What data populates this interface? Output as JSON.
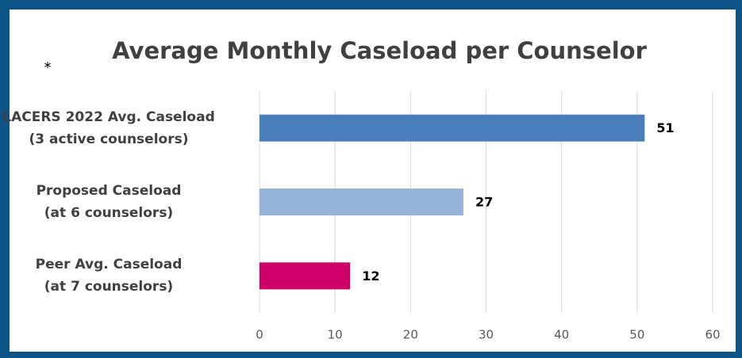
{
  "chart_data": {
    "type": "hbar",
    "title": "Average Monthly Caseload per Counselor",
    "annotation": "*",
    "categories": [
      "LACERS 2022 Avg. Caseload\n(3 active counselors)",
      "Proposed Caseload\n(at 6 counselors)",
      "Peer Avg. Caseload\n(at 7 counselors)"
    ],
    "values": [
      51,
      27,
      12
    ],
    "colors": [
      "#4a7ebb",
      "#95b3d7",
      "#cc0066"
    ],
    "xlim": [
      0,
      60
    ],
    "xticks": [
      0,
      10,
      20,
      30,
      40,
      50,
      60
    ],
    "grid": true
  }
}
